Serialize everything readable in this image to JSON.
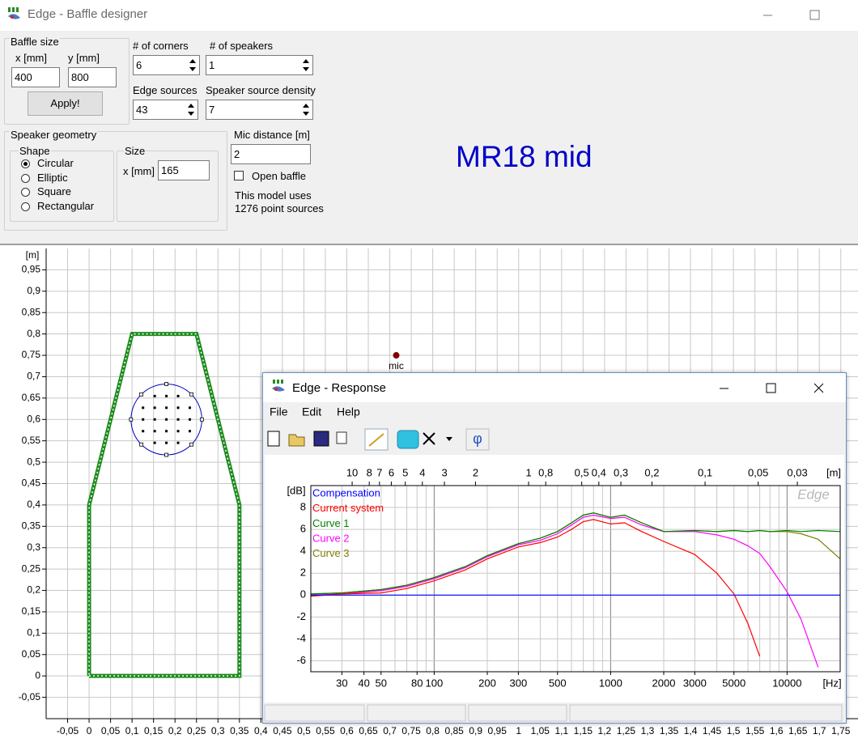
{
  "window": {
    "title": "Edge - Baffle designer"
  },
  "controls": {
    "baffle_size": {
      "title": "Baffle size",
      "x_label": "x [mm]",
      "y_label": "y [mm]",
      "x": 400,
      "y": 800,
      "apply": "Apply!"
    },
    "corners": {
      "label": "# of corners",
      "value": 6
    },
    "speakers": {
      "label": "# of speakers",
      "value": 1
    },
    "edge_sources": {
      "label": "Edge sources",
      "value": 43
    },
    "density": {
      "label": "Speaker source density",
      "value": 7
    },
    "speaker_geometry": {
      "title": "Speaker geometry",
      "shape_title": "Shape",
      "shapes": [
        "Circular",
        "Elliptic",
        "Square",
        "Rectangular"
      ],
      "size_title": "Size",
      "size_label": "x [mm]",
      "size": 165
    },
    "mic_distance": {
      "label": "Mic distance [m]",
      "value": 2
    },
    "open_baffle": "Open baffle",
    "info": [
      "This model uses",
      "1276 point sources"
    ]
  },
  "project_name": "MR18 mid",
  "response_window": {
    "title": "Edge - Response",
    "menu": [
      "File",
      "Edit",
      "Help"
    ],
    "phase_button": "φ"
  },
  "chart_data": [
    {
      "type": "baffle",
      "y_label": "[m]",
      "grid": true,
      "xlim": [
        -0.1,
        1.79
      ],
      "ylim": [
        -0.1,
        1.0
      ],
      "xticks": [
        {
          "value": -0.05,
          "label": "-0,05"
        },
        0,
        {
          "value": 0.05,
          "label": "0,05"
        },
        {
          "value": 0.1,
          "label": "0,1"
        },
        {
          "value": 0.15,
          "label": "0,15"
        },
        {
          "value": 0.2,
          "label": "0,2"
        },
        {
          "value": 0.25,
          "label": "0,25"
        },
        {
          "value": 0.3,
          "label": "0,3"
        },
        {
          "value": 0.35,
          "label": "0,35"
        },
        {
          "value": 0.4,
          "label": "0,4"
        },
        {
          "value": 0.45,
          "label": "0,45"
        },
        {
          "value": 0.5,
          "label": "0,5"
        },
        {
          "value": 0.55,
          "label": "0,55"
        },
        {
          "value": 0.6,
          "label": "0,6"
        },
        {
          "value": 0.65,
          "label": "0,65"
        },
        {
          "value": 0.7,
          "label": "0,7"
        },
        {
          "value": 0.75,
          "label": "0,75"
        },
        {
          "value": 0.8,
          "label": "0,8"
        },
        {
          "value": 0.85,
          "label": "0,85"
        },
        {
          "value": 0.9,
          "label": "0,9"
        },
        {
          "value": 0.95,
          "label": "0,95"
        },
        1,
        {
          "value": 1.05,
          "label": "1,05"
        },
        {
          "value": 1.1,
          "label": "1,1"
        },
        {
          "value": 1.15,
          "label": "1,15"
        },
        {
          "value": 1.2,
          "label": "1,2"
        },
        {
          "value": 1.25,
          "label": "1,25"
        },
        {
          "value": 1.3,
          "label": "1,3"
        },
        {
          "value": 1.35,
          "label": "1,35"
        },
        {
          "value": 1.4,
          "label": "1,4"
        },
        {
          "value": 1.45,
          "label": "1,45"
        },
        {
          "value": 1.5,
          "label": "1,5"
        },
        {
          "value": 1.55,
          "label": "1,55"
        },
        {
          "value": 1.6,
          "label": "1,6"
        },
        {
          "value": 1.65,
          "label": "1,65"
        },
        {
          "value": 1.7,
          "label": "1,7"
        },
        {
          "value": 1.75,
          "label": "1,75"
        }
      ],
      "yticks": [
        {
          "value": -0.05,
          "label": "-0,05"
        },
        0,
        {
          "value": 0.05,
          "label": "0,05"
        },
        {
          "value": 0.1,
          "label": "0,1"
        },
        {
          "value": 0.15,
          "label": "0,15"
        },
        {
          "value": 0.2,
          "label": "0,2"
        },
        {
          "value": 0.25,
          "label": "0,25"
        },
        {
          "value": 0.3,
          "label": "0,3"
        },
        {
          "value": 0.35,
          "label": "0,35"
        },
        {
          "value": 0.4,
          "label": "0,4"
        },
        {
          "value": 0.45,
          "label": "0,45"
        },
        {
          "value": 0.5,
          "label": "0,5"
        },
        {
          "value": 0.55,
          "label": "0,55"
        },
        {
          "value": 0.6,
          "label": "0,6"
        },
        {
          "value": 0.65,
          "label": "0,65"
        },
        {
          "value": 0.7,
          "label": "0,7"
        },
        {
          "value": 0.75,
          "label": "0,75"
        },
        {
          "value": 0.8,
          "label": "0,8"
        },
        {
          "value": 0.85,
          "label": "0,85"
        },
        {
          "value": 0.9,
          "label": "0,9"
        },
        {
          "value": 0.95,
          "label": "0,95"
        }
      ],
      "outline": {
        "color": "#1e8c1e",
        "x": [
          0,
          0.35,
          0.35,
          0.25,
          0.1,
          0,
          0
        ],
        "y": [
          0,
          0,
          0.4,
          0.8,
          0.8,
          0.4,
          0
        ]
      },
      "speaker": {
        "color": "#0000c0",
        "x": 0.18,
        "y": 0.6,
        "diameter": 0.165
      },
      "mic": {
        "color": "#800000",
        "x": 0.715,
        "y": 0.75,
        "label": "mic"
      }
    },
    {
      "type": "line",
      "log_x": true,
      "grid": true,
      "x_label": "[Hz]",
      "y_label": "[dB]",
      "top_label": "[m]",
      "watermark": "Edge",
      "xlim": [
        20,
        20000
      ],
      "ylim": [
        -7,
        10
      ],
      "xticks": [
        30,
        40,
        50,
        80,
        100,
        200,
        300,
        500,
        1000,
        2000,
        3000,
        5000,
        10000
      ],
      "yticks": [
        -6,
        -4,
        -2,
        0,
        2,
        4,
        6,
        8
      ],
      "top_ticks": [
        10,
        8,
        7,
        6,
        5,
        4,
        3,
        2,
        1,
        {
          "value": 0.8,
          "label": "0,8"
        },
        {
          "value": 0.5,
          "label": "0,5"
        },
        {
          "value": 0.4,
          "label": "0,4"
        },
        {
          "value": 0.3,
          "label": "0,3"
        },
        {
          "value": 0.2,
          "label": "0,2"
        },
        {
          "value": 0.1,
          "label": "0,1"
        },
        {
          "value": 0.05,
          "label": "0,05"
        },
        {
          "value": 0.03,
          "label": "0,03"
        }
      ],
      "x": [
        20,
        30,
        50,
        70,
        100,
        150,
        200,
        300,
        400,
        500,
        600,
        700,
        800,
        1000,
        1200,
        1500,
        2000,
        3000,
        4000,
        5000,
        6000,
        7000,
        8000,
        10000,
        12000,
        15000,
        20000
      ],
      "series": [
        {
          "name": "Compensation",
          "color": "#0000ff",
          "values": [
            0,
            0,
            0,
            0,
            0,
            0,
            0,
            0,
            0,
            0,
            0,
            0,
            0,
            0,
            0,
            0,
            0,
            0,
            0,
            0,
            0,
            0,
            0,
            0,
            0,
            0,
            0
          ]
        },
        {
          "name": "Current system",
          "color": "#ff0000",
          "values": [
            -0.1,
            0.1,
            0.2,
            0.6,
            1.3,
            2.3,
            3.3,
            4.4,
            4.8,
            5.3,
            6.0,
            6.7,
            6.9,
            6.5,
            6.6,
            5.8,
            4.9,
            3.7,
            2.0,
            0.1,
            -2.6,
            -5.6,
            null,
            null,
            null,
            null,
            null
          ]
        },
        {
          "name": "Curve 1",
          "color": "#008000",
          "values": [
            0.1,
            0.2,
            0.5,
            0.9,
            1.6,
            2.6,
            3.6,
            4.7,
            5.2,
            5.8,
            6.6,
            7.3,
            7.5,
            7.1,
            7.3,
            6.6,
            5.8,
            5.9,
            5.8,
            5.9,
            5.8,
            5.9,
            5.8,
            5.9,
            5.8,
            5.9,
            5.8
          ]
        },
        {
          "name": "Curve 2",
          "color": "#ff00ff",
          "values": [
            0,
            0.1,
            0.4,
            0.8,
            1.5,
            2.5,
            3.5,
            4.6,
            5.0,
            5.6,
            6.4,
            7.1,
            7.3,
            7.0,
            7.1,
            6.4,
            5.8,
            5.8,
            5.5,
            5.1,
            4.5,
            3.8,
            2.6,
            0.3,
            -2.2,
            -6.6,
            null
          ]
        },
        {
          "name": "Curve 3",
          "color": "#808000",
          "values": [
            0.1,
            0.2,
            0.5,
            0.9,
            1.6,
            2.6,
            3.6,
            4.7,
            5.2,
            5.8,
            6.6,
            7.3,
            7.5,
            7.1,
            7.3,
            6.6,
            5.8,
            5.9,
            5.8,
            5.9,
            5.8,
            5.9,
            5.8,
            5.8,
            5.6,
            5.1,
            3.3
          ]
        }
      ]
    }
  ]
}
